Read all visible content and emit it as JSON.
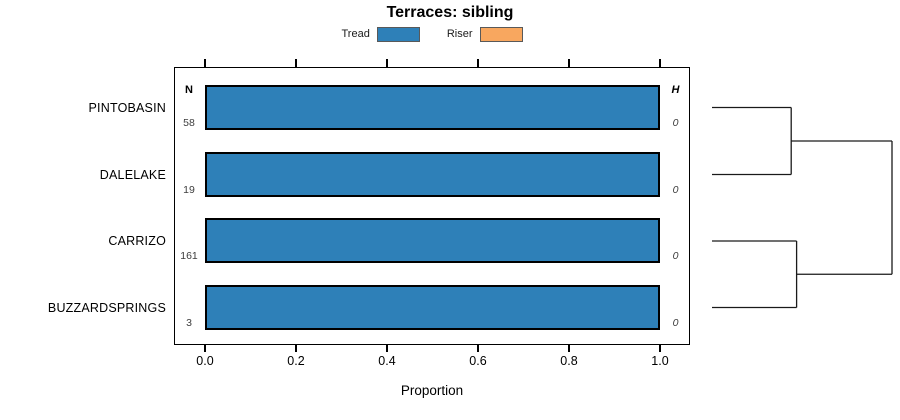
{
  "chart_data": {
    "type": "bar",
    "orientation": "horizontal",
    "title": "Terraces: sibling",
    "categories": [
      "PINTOBASIN",
      "DALELAKE",
      "CARRIZO",
      "BUZZARDSPRINGS"
    ],
    "series": [
      {
        "name": "Tread",
        "color": "#2E80B8",
        "values": [
          1.0,
          1.0,
          1.0,
          1.0
        ]
      },
      {
        "name": "Riser",
        "color": "#F8A75F",
        "values": [
          0.0,
          0.0,
          0.0,
          0.0
        ]
      }
    ],
    "n_header": "N",
    "n_values": [
      58,
      19,
      161,
      3
    ],
    "h_header": "H",
    "h_values": [
      0,
      0,
      0,
      0
    ],
    "xlabel": "Proportion",
    "xlim": [
      0,
      1
    ],
    "xticks": [
      0.0,
      0.2,
      0.4,
      0.6,
      0.8,
      1.0
    ],
    "xtick_labels": [
      "0.0",
      "0.2",
      "0.4",
      "0.6",
      "0.8",
      "1.0"
    ],
    "grid": false,
    "legend_position": "top",
    "dendrogram": {
      "leaves": [
        "PINTOBASIN",
        "DALELAKE",
        "CARRIZO",
        "BUZZARDSPRINGS"
      ],
      "merges": [
        {
          "children": [
            "leaf-0",
            "leaf-1"
          ],
          "height": 0.44
        },
        {
          "children": [
            "leaf-2",
            "leaf-3"
          ],
          "height": 0.47
        },
        {
          "children": [
            "node-0",
            "node-1"
          ],
          "height": 1.0
        }
      ]
    }
  }
}
